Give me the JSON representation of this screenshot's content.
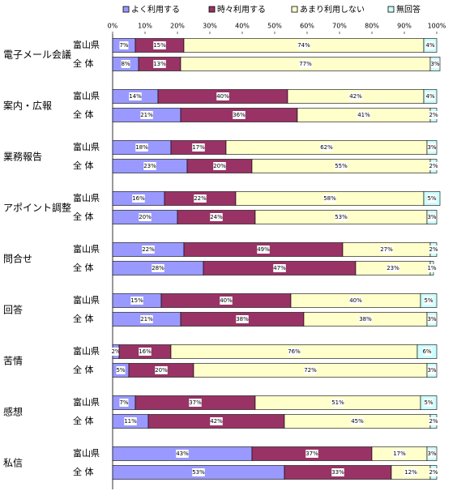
{
  "chart_data": {
    "type": "stacked-bar-horizontal",
    "legend_position": "top",
    "groups": [
      "電子メール会議",
      "案内・広報",
      "業務報告",
      "アポイント調整",
      "問合せ",
      "回答",
      "苦情",
      "感想",
      "私信"
    ],
    "categories": [
      "富山県",
      "全 体",
      "富山県",
      "全 体",
      "富山県",
      "全 体",
      "富山県",
      "全 体",
      "富山県",
      "全 体",
      "富山県",
      "全 体",
      "富山県",
      "全 体",
      "富山県",
      "全 体",
      "富山県",
      "全 体"
    ],
    "series": [
      {
        "name": "よく利用する",
        "color": "#9999ff",
        "values": [
          7,
          8,
          14,
          21,
          18,
          23,
          16,
          20,
          22,
          28,
          15,
          21,
          2,
          5,
          7,
          11,
          43,
          53
        ],
        "value_labels": [
          "7%",
          "8%",
          "14%",
          "21%",
          "18%",
          "23%",
          "16%",
          "20%",
          "22%",
          "28%",
          "15%",
          "21%",
          "2%",
          "5%",
          "7%",
          "11%",
          "43%",
          "53%"
        ]
      },
      {
        "name": "時々利用する",
        "color": "#993366",
        "values": [
          15,
          13,
          40,
          36,
          17,
          20,
          22,
          24,
          49,
          47,
          40,
          38,
          16,
          20,
          37,
          42,
          37,
          33
        ],
        "value_labels": [
          "15%",
          "13%",
          "40%",
          "36%",
          "17%",
          "20%",
          "22%",
          "24%",
          "49%",
          "47%",
          "40%",
          "38%",
          "16%",
          "20%",
          "37%",
          "42%",
          "37%",
          "33%"
        ]
      },
      {
        "name": "あまり利用しない",
        "color": "#ffffcc",
        "values": [
          74,
          77,
          42,
          41,
          62,
          55,
          58,
          53,
          27,
          23,
          40,
          38,
          76,
          72,
          51,
          45,
          17,
          12
        ],
        "value_labels": [
          "74%",
          "77%",
          "42%",
          "41%",
          "62%",
          "55%",
          "58%",
          "53%",
          "27%",
          "23%",
          "40%",
          "38%",
          "76%",
          "72%",
          "51%",
          "45%",
          "17%",
          "12%"
        ]
      },
      {
        "name": "無回答",
        "color": "#ccffff",
        "values": [
          4,
          3,
          4,
          2,
          3,
          2,
          5,
          3,
          2,
          1,
          5,
          3,
          6,
          3,
          5,
          2,
          3,
          2
        ],
        "value_labels": [
          "4%",
          "3%",
          "4%",
          "2%",
          "3%",
          "2%",
          "5%",
          "3%",
          "2%",
          "1%",
          "5%",
          "3%",
          "6%",
          "3%",
          "5%",
          "2%",
          "3%",
          "2%"
        ]
      }
    ],
    "xlim": [
      0,
      100
    ],
    "xticks": [
      {
        "value": 0,
        "label": "0%"
      },
      {
        "value": 10,
        "label": "10%"
      },
      {
        "value": 20,
        "label": "20%"
      },
      {
        "value": 30,
        "label": "30%"
      },
      {
        "value": 40,
        "label": "40%"
      },
      {
        "value": 50,
        "label": "50%"
      },
      {
        "value": 60,
        "label": "60%"
      },
      {
        "value": 70,
        "label": "70%"
      },
      {
        "value": 80,
        "label": "80%"
      },
      {
        "value": 90,
        "label": "90%"
      },
      {
        "value": 100,
        "label": "100%"
      }
    ]
  }
}
